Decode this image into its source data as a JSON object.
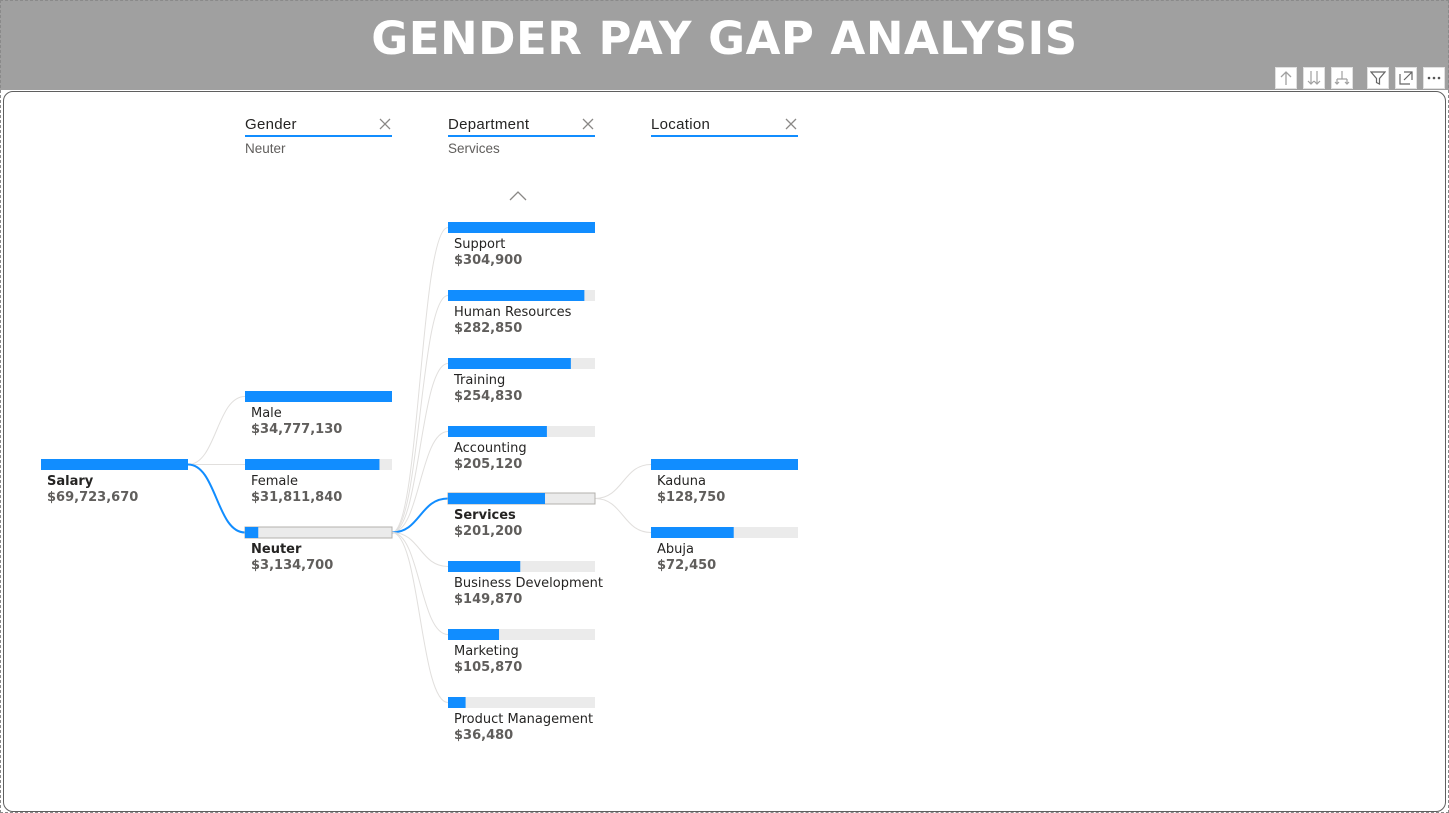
{
  "title": "GENDER PAY GAP ANALYSIS",
  "colors": {
    "accent": "#118dff",
    "track": "#ebebeb",
    "title_bar": "#a0a0a0"
  },
  "header_icons": [
    "drill-up-icon",
    "expand-all-icon",
    "drill-down-icon",
    "filter-icon",
    "focus-mode-icon",
    "more-options-icon"
  ],
  "levels": [
    {
      "name": "Gender",
      "selected": "Neuter"
    },
    {
      "name": "Department",
      "selected": "Services"
    },
    {
      "name": "Location",
      "selected": ""
    }
  ],
  "chart_data": {
    "type": "decomposition-tree",
    "root": {
      "label": "Salary",
      "value": 69723670,
      "display": "$69,723,670"
    },
    "gender": [
      {
        "label": "Male",
        "value": 34777130,
        "display": "$34,777,130"
      },
      {
        "label": "Female",
        "value": 31811840,
        "display": "$31,811,840"
      },
      {
        "label": "Neuter",
        "value": 3134700,
        "display": "$3,134,700",
        "selected": true
      }
    ],
    "department": [
      {
        "label": "Support",
        "value": 304900,
        "display": "$304,900"
      },
      {
        "label": "Human Resources",
        "value": 282850,
        "display": "$282,850"
      },
      {
        "label": "Training",
        "value": 254830,
        "display": "$254,830"
      },
      {
        "label": "Accounting",
        "value": 205120,
        "display": "$205,120"
      },
      {
        "label": "Services",
        "value": 201200,
        "display": "$201,200",
        "selected": true
      },
      {
        "label": "Business Development",
        "value": 149870,
        "display": "$149,870"
      },
      {
        "label": "Marketing",
        "value": 105870,
        "display": "$105,870"
      },
      {
        "label": "Product Management",
        "value": 36480,
        "display": "$36,480"
      }
    ],
    "location": [
      {
        "label": "Kaduna",
        "value": 128750,
        "display": "$128,750"
      },
      {
        "label": "Abuja",
        "value": 72450,
        "display": "$72,450"
      }
    ]
  }
}
